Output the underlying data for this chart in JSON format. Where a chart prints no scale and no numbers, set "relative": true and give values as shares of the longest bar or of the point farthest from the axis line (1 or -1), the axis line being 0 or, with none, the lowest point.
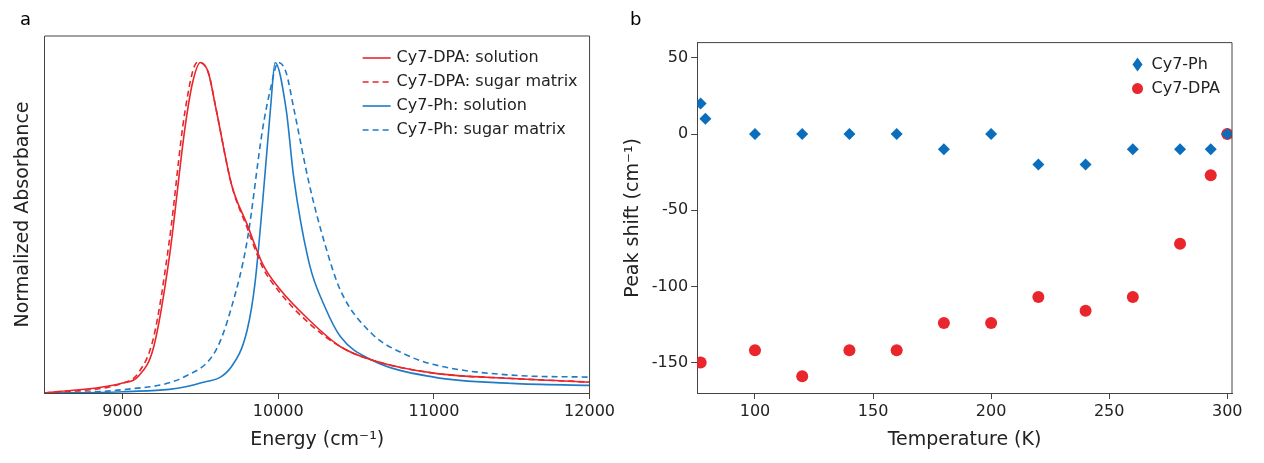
{
  "chart_data": [
    {
      "type": "line",
      "title": "a",
      "xlabel": "Energy (cm⁻¹)",
      "ylabel": "Normalized Absorbance",
      "relative": true,
      "xlim": [
        8500,
        12000
      ],
      "xticks": [
        9000,
        10000,
        11000,
        12000
      ],
      "tick_labels": "x",
      "legend": "top right",
      "grid": false,
      "marker": "none",
      "series": [
        {
          "name": "Cy7-DPA: solution",
          "color": "#e8262c",
          "line_style": "solid",
          "x": [
            8500,
            9000,
            9100,
            9200,
            9300,
            9400,
            9450,
            9500,
            9550,
            9600,
            9700,
            9800,
            9900,
            10000,
            10200,
            10400,
            10600,
            11000,
            11500,
            12000
          ],
          "values": [
            0,
            0.03,
            0.05,
            0.14,
            0.41,
            0.8,
            0.94,
            1,
            0.97,
            0.86,
            0.63,
            0.51,
            0.39,
            0.32,
            0.22,
            0.14,
            0.1,
            0.06,
            0.044,
            0.033
          ]
        },
        {
          "name": "Cy7-DPA: sugar matrix",
          "color": "#e8262c",
          "line_style": "dashed",
          "x": [
            8500,
            9000,
            9100,
            9200,
            9300,
            9400,
            9480,
            9550,
            9600,
            9700,
            9800,
            9900,
            10000,
            10200,
            10400,
            10600,
            11000,
            11500,
            12000
          ],
          "values": [
            0,
            0.03,
            0.06,
            0.17,
            0.46,
            0.85,
            1,
            0.97,
            0.86,
            0.63,
            0.5,
            0.38,
            0.31,
            0.21,
            0.14,
            0.1,
            0.06,
            0.044,
            0.033
          ]
        },
        {
          "name": "Cy7-Ph: solution",
          "color": "#1f7bc6",
          "line_style": "solid",
          "x": [
            8500,
            9000,
            9500,
            9700,
            9800,
            9850,
            9900,
            9950,
            9980,
            10050,
            10100,
            10200,
            10300,
            10400,
            10600,
            11000,
            11500,
            12000
          ],
          "values": [
            0,
            0.004,
            0.03,
            0.08,
            0.19,
            0.33,
            0.58,
            0.86,
            1,
            0.86,
            0.65,
            0.39,
            0.26,
            0.17,
            0.1,
            0.048,
            0.029,
            0.023
          ]
        },
        {
          "name": "Cy7-Ph: sugar matrix",
          "color": "#1f7bc6",
          "line_style": "dashed",
          "x": [
            8500,
            9000,
            9400,
            9600,
            9700,
            9800,
            9900,
            9950,
            10000,
            10050,
            10100,
            10200,
            10300,
            10400,
            10600,
            10800,
            11000,
            11500,
            12000
          ],
          "values": [
            0,
            0.01,
            0.05,
            0.13,
            0.26,
            0.46,
            0.8,
            0.92,
            1,
            0.97,
            0.86,
            0.63,
            0.45,
            0.31,
            0.18,
            0.12,
            0.086,
            0.054,
            0.048
          ]
        }
      ]
    },
    {
      "type": "scatter",
      "title": "b",
      "xlabel": "Temperature (K)",
      "ylabel": "Peak shift (cm⁻¹)",
      "xlim": [
        75.5,
        302
      ],
      "xticks": [
        100,
        150,
        200,
        250,
        300
      ],
      "ylim": [
        -170,
        60
      ],
      "yticks": [
        -150,
        -100,
        -50,
        0,
        50
      ],
      "legend": "top right",
      "grid": false,
      "series": [
        {
          "name": "Cy7-Ph",
          "color": "#0a6ebd",
          "marker": "diamond",
          "x": [
            77,
            79,
            100,
            120,
            140,
            160,
            180,
            200,
            220,
            240,
            260,
            280,
            293,
            300
          ],
          "values": [
            20,
            10,
            0,
            0,
            0,
            0,
            -10,
            0,
            -20,
            -20,
            -10,
            -10,
            -10,
            0
          ]
        },
        {
          "name": "Cy7-DPA",
          "color": "#e8262c",
          "marker": "circle",
          "x": [
            77,
            100,
            120,
            140,
            160,
            180,
            200,
            220,
            240,
            260,
            280,
            293,
            300
          ],
          "values": [
            -150,
            -142,
            -159,
            -142,
            -142,
            -124,
            -124,
            -107,
            -116,
            -107,
            -72,
            -27,
            0
          ]
        }
      ]
    }
  ]
}
